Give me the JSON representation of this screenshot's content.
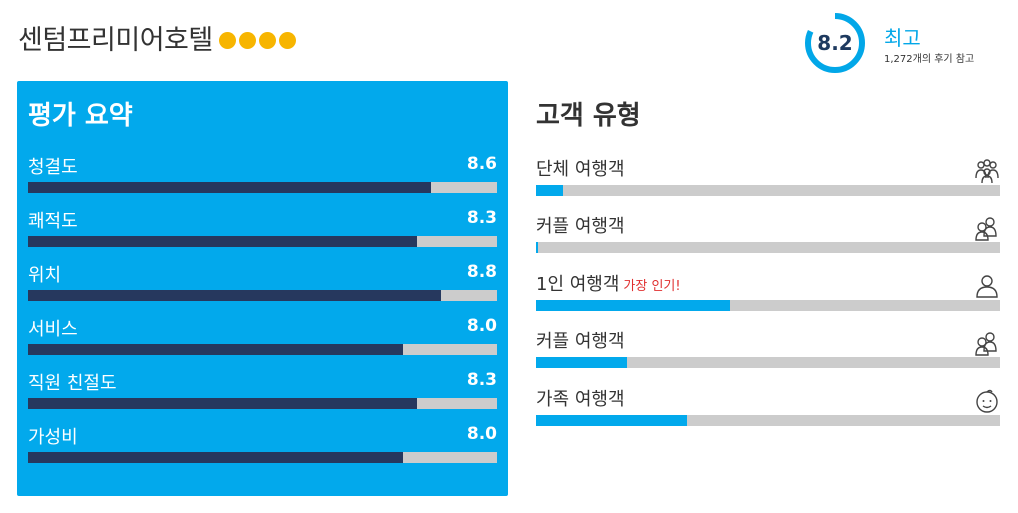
{
  "hotel": {
    "name": "센텀프리미어호텔",
    "star_count": 4,
    "star_color": "#f7b500"
  },
  "score": {
    "value": "8.2",
    "value_fraction": 0.82,
    "word": "최고",
    "reviews": "1,272개의 후기 참고",
    "ring_color": "#02a7e8"
  },
  "summary": {
    "heading": "평가 요약",
    "scale_max": 10,
    "items": [
      {
        "label": "청결도",
        "score": "8.6",
        "value": 8.6
      },
      {
        "label": "쾌적도",
        "score": "8.3",
        "value": 8.3
      },
      {
        "label": "위치",
        "score": "8.8",
        "value": 8.8
      },
      {
        "label": "서비스",
        "score": "8.0",
        "value": 8.0
      },
      {
        "label": "직원 친절도",
        "score": "8.3",
        "value": 8.3
      },
      {
        "label": "가성비",
        "score": "8.0",
        "value": 8.0
      }
    ]
  },
  "travellers": {
    "heading": "고객 유형",
    "items": [
      {
        "label": "단체 여행객",
        "badge": "",
        "share": 0.058,
        "icon": "group-icon"
      },
      {
        "label": "커플 여행객",
        "badge": "",
        "share": 0.004,
        "icon": "couple-icon"
      },
      {
        "label": "1인 여행객",
        "badge": "가장 인기!",
        "share": 0.418,
        "icon": "solo-icon"
      },
      {
        "label": "커플 여행객",
        "badge": "",
        "share": 0.196,
        "icon": "couple-icon"
      },
      {
        "label": "가족 여행객",
        "badge": "",
        "share": 0.325,
        "icon": "family-icon"
      }
    ]
  },
  "colors": {
    "panel": "#02a9ec",
    "rating_fill": "#26385e",
    "track": "#cccccc",
    "traveller_fill": "#02a9ec",
    "badge": "#e02f2f"
  }
}
